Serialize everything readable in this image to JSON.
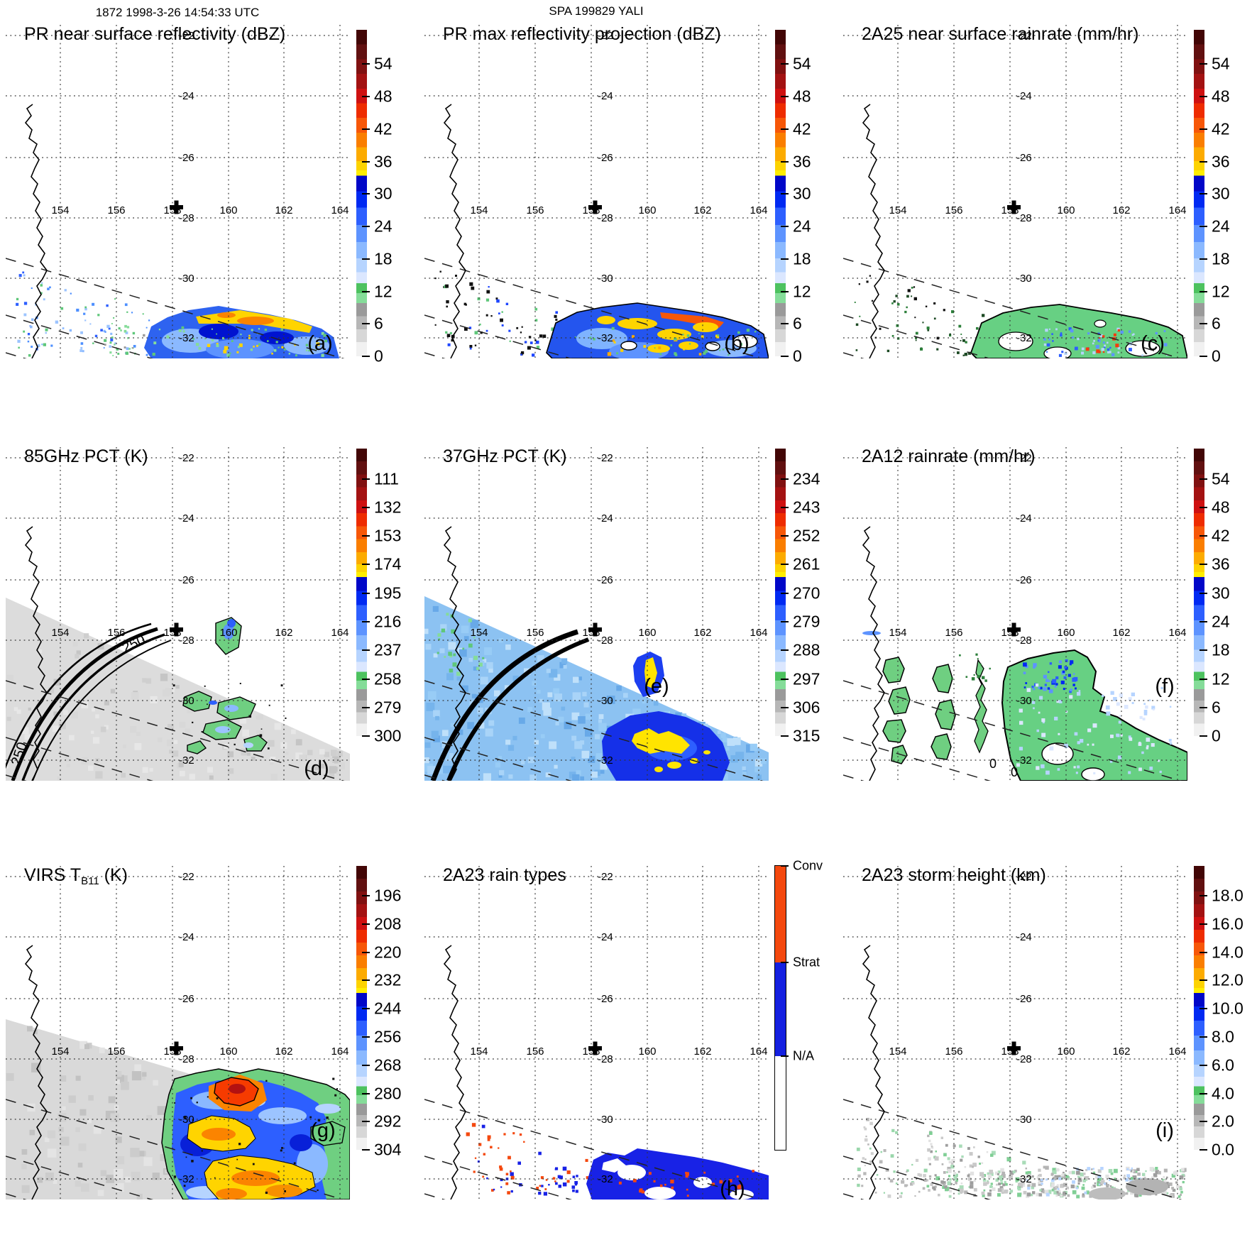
{
  "chart_data": {
    "type": "heatmap",
    "subtype": "multi-panel satellite swath maps (3x3)",
    "suptitle_left": "1872 1998-3-26 14:54:33 UTC",
    "suptitle_center": "SPA 199829 YALI",
    "lon_ticks": [
      "154",
      "156",
      "158",
      "160",
      "162",
      "164"
    ],
    "lat_ticks": [
      "-22",
      "-24",
      "-26",
      "-28",
      "-30",
      "-32"
    ],
    "map_extent": {
      "lon": [
        152.1,
        164.4
      ],
      "lat": [
        -33.0,
        -21.7
      ]
    },
    "storm_center_marker": "+",
    "panels": [
      {
        "id": "a",
        "letter": "(a)",
        "title_pre": "PR near surface reflectivity (dBZ)",
        "title_sub": "",
        "title_post": "",
        "bar": "rainbow",
        "ticks": [
          "54",
          "48",
          "42",
          "36",
          "30",
          "24",
          "18",
          "12",
          "6",
          "0"
        ],
        "annotations": []
      },
      {
        "id": "b",
        "letter": "(b)",
        "title_pre": "PR max reflectivity projection (dBZ)",
        "title_sub": "",
        "title_post": "",
        "bar": "rainbow",
        "ticks": [
          "54",
          "48",
          "42",
          "36",
          "30",
          "24",
          "18",
          "12",
          "6",
          "0"
        ],
        "annotations": []
      },
      {
        "id": "c",
        "letter": "(c)",
        "title_pre": "2A25 near surface rainrate (mm/hr)",
        "title_sub": "",
        "title_post": "",
        "bar": "rainbow",
        "ticks": [
          "54",
          "48",
          "42",
          "36",
          "30",
          "24",
          "18",
          "12",
          "6",
          "0"
        ],
        "annotations": []
      },
      {
        "id": "d",
        "letter": "(d)",
        "title_pre": "85GHz PCT (K)",
        "title_sub": "",
        "title_post": "",
        "bar": "rainbow",
        "ticks": [
          "111",
          "132",
          "153",
          "174",
          "195",
          "216",
          "237",
          "258",
          "279",
          "300"
        ],
        "annotations": [
          "250",
          "250"
        ]
      },
      {
        "id": "e",
        "letter": "(e)",
        "title_pre": "37GHz PCT (K)",
        "title_sub": "",
        "title_post": "",
        "bar": "rainbow",
        "ticks": [
          "234",
          "243",
          "252",
          "261",
          "270",
          "279",
          "288",
          "297",
          "306",
          "315"
        ],
        "annotations": []
      },
      {
        "id": "f",
        "letter": "(f)",
        "title_pre": "2A12 rainrate (mm/hr)",
        "title_sub": "",
        "title_post": "",
        "bar": "rainbow",
        "ticks": [
          "54",
          "48",
          "42",
          "36",
          "30",
          "24",
          "18",
          "12",
          "6",
          "0"
        ],
        "annotations": [
          "0",
          "0"
        ]
      },
      {
        "id": "g",
        "letter": "(g)",
        "title_pre": "VIRS T",
        "title_sub": "B11",
        "title_post": " (K)",
        "bar": "rainbow",
        "ticks": [
          "196",
          "208",
          "220",
          "232",
          "244",
          "256",
          "268",
          "280",
          "292",
          "304"
        ],
        "annotations": []
      },
      {
        "id": "h",
        "letter": "(h)",
        "title_pre": "2A23 rain types",
        "title_sub": "",
        "title_post": "",
        "bar": "categories",
        "cat_labels": [
          "Conv",
          "Strat",
          "N/A"
        ],
        "annotations": []
      },
      {
        "id": "i",
        "letter": "(i)",
        "title_pre": "2A23 storm height (km)",
        "title_sub": "",
        "title_post": "",
        "bar": "rainbow",
        "ticks": [
          "18.0",
          "16.0",
          "14.0",
          "12.0",
          "10.0",
          "8.0",
          "6.0",
          "4.0",
          "2.0",
          "0.0"
        ],
        "annotations": []
      }
    ],
    "palettes": {
      "rainbow": [
        [
          "#420606",
          0.0,
          0.045
        ],
        [
          "#611010",
          0.045,
          0.09
        ],
        [
          "#801111",
          0.09,
          0.135
        ],
        [
          "#a31212",
          0.135,
          0.18
        ],
        [
          "#ce1111",
          0.18,
          0.225
        ],
        [
          "#ee2c00",
          0.225,
          0.27
        ],
        [
          "#f75708",
          0.27,
          0.315
        ],
        [
          "#fa7e00",
          0.315,
          0.36
        ],
        [
          "#fcab00",
          0.36,
          0.402
        ],
        [
          "#fdd300",
          0.402,
          0.43
        ],
        [
          "#ffee00",
          0.43,
          0.447
        ],
        [
          "#0007c8",
          0.447,
          0.495
        ],
        [
          "#0029f2",
          0.495,
          0.545
        ],
        [
          "#2d5fff",
          0.545,
          0.598
        ],
        [
          "#5d93ff",
          0.598,
          0.65
        ],
        [
          "#8bb9ff",
          0.65,
          0.7
        ],
        [
          "#b6d4ff",
          0.7,
          0.742
        ],
        [
          "#dbe7ff",
          0.742,
          0.776
        ],
        [
          "#4dc25f",
          0.776,
          0.807
        ],
        [
          "#85dc99",
          0.807,
          0.837
        ],
        [
          "#9a9a9a",
          0.837,
          0.877
        ],
        [
          "#b7b7b7",
          0.877,
          0.917
        ],
        [
          "#d7d7d7",
          0.917,
          0.957
        ],
        [
          "#f1f1f1",
          0.957,
          1.0
        ]
      ],
      "categories": [
        [
          "#f4480e",
          0.0,
          0.34
        ],
        [
          "#1420e0",
          0.34,
          0.67
        ],
        [
          "#ffffff",
          0.67,
          1.0
        ]
      ]
    }
  }
}
